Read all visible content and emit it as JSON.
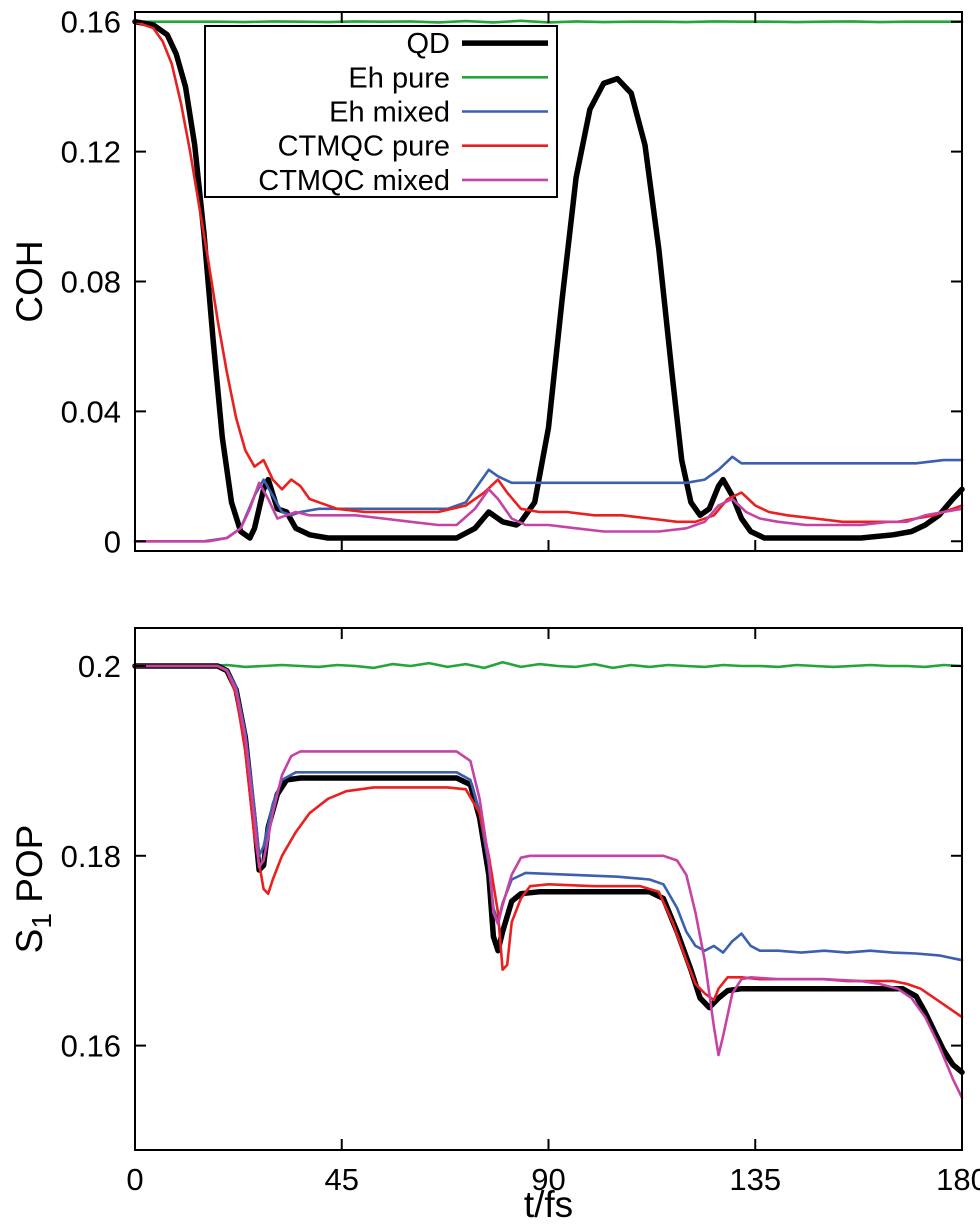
{
  "figure": {
    "xlabel": "t/fs"
  },
  "colors": {
    "QD": "#000000",
    "Eh pure": "#23a638",
    "Eh mixed": "#3c5fb0",
    "CTMQC pure": "#ea2020",
    "CTMQC mixed": "#c643a6"
  },
  "chart_data": [
    {
      "type": "line",
      "title": "",
      "ylabel": "COH",
      "ylabel_parts": [
        {
          "text": "COH",
          "sub": false
        }
      ],
      "xlim": [
        0,
        180
      ],
      "ylim": [
        -0.003,
        0.163
      ],
      "yticks": [
        0,
        0.04,
        0.08,
        0.12,
        0.16
      ],
      "ytick_labels": [
        "0",
        "0.04",
        "0.08",
        "0.12",
        "0.16"
      ],
      "xticks": [
        0,
        45,
        90,
        135,
        180
      ],
      "xtick_labels": null,
      "grid": false,
      "legend": {
        "visible": true,
        "position": "upper-left",
        "entries": [
          "QD",
          "Eh pure",
          "Eh mixed",
          "CTMQC pure",
          "CTMQC mixed"
        ]
      },
      "series": [
        {
          "name": "Eh pure",
          "color": "#23a638",
          "width": 2.6,
          "x": [
            0,
            6,
            12,
            18,
            24,
            30,
            36,
            42,
            48,
            54,
            60,
            66,
            72,
            78,
            84,
            90,
            96,
            102,
            108,
            114,
            120,
            126,
            132,
            138,
            144,
            150,
            156,
            162,
            168,
            174,
            180
          ],
          "y": [
            0.16,
            0.16,
            0.16,
            0.16,
            0.1599,
            0.1601,
            0.16,
            0.1599,
            0.1601,
            0.16,
            0.1601,
            0.1598,
            0.1602,
            0.1598,
            0.1603,
            0.1598,
            0.1601,
            0.1599,
            0.16,
            0.16,
            0.1599,
            0.1601,
            0.16,
            0.16,
            0.1599,
            0.16,
            0.1601,
            0.1599,
            0.16,
            0.16,
            0.16
          ]
        },
        {
          "name": "QD",
          "color": "#000000",
          "width": 5.5,
          "x": [
            0,
            4,
            7,
            9,
            11,
            13,
            15,
            17,
            19,
            21,
            23,
            25,
            26,
            28,
            29,
            31,
            33,
            35,
            38,
            42,
            48,
            56,
            64,
            70,
            74,
            77,
            80,
            83,
            84,
            87,
            90,
            93,
            96,
            99,
            102,
            105,
            108,
            111,
            114,
            117,
            119,
            121,
            123,
            125,
            127,
            128,
            130,
            132,
            134,
            137,
            142,
            150,
            158,
            165,
            169,
            172,
            175,
            178,
            180
          ],
          "y": [
            0.16,
            0.159,
            0.156,
            0.15,
            0.14,
            0.122,
            0.095,
            0.062,
            0.032,
            0.012,
            0.003,
            0.001,
            0.004,
            0.016,
            0.019,
            0.01,
            0.009,
            0.004,
            0.002,
            0.001,
            0.001,
            0.001,
            0.001,
            0.001,
            0.004,
            0.009,
            0.006,
            0.005,
            0.006,
            0.012,
            0.035,
            0.075,
            0.112,
            0.133,
            0.141,
            0.1425,
            0.138,
            0.122,
            0.09,
            0.05,
            0.025,
            0.012,
            0.008,
            0.01,
            0.017,
            0.019,
            0.014,
            0.007,
            0.003,
            0.001,
            0.001,
            0.001,
            0.001,
            0.002,
            0.003,
            0.005,
            0.008,
            0.013,
            0.016
          ]
        },
        {
          "name": "Eh mixed",
          "color": "#3c5fb0",
          "width": 2.6,
          "x": [
            0,
            15,
            20,
            23,
            26,
            28,
            30,
            32,
            34,
            36,
            40,
            50,
            60,
            68,
            72,
            75,
            77,
            79,
            82,
            86,
            95,
            105,
            115,
            120,
            124,
            127,
            130,
            132,
            136,
            142,
            150,
            160,
            170,
            176,
            180
          ],
          "y": [
            0.0,
            0.0,
            0.001,
            0.004,
            0.014,
            0.019,
            0.014,
            0.009,
            0.008,
            0.009,
            0.01,
            0.01,
            0.01,
            0.01,
            0.012,
            0.018,
            0.022,
            0.02,
            0.018,
            0.018,
            0.018,
            0.018,
            0.018,
            0.018,
            0.019,
            0.022,
            0.026,
            0.024,
            0.024,
            0.024,
            0.024,
            0.024,
            0.024,
            0.025,
            0.025
          ]
        },
        {
          "name": "CTMQC pure",
          "color": "#ea2020",
          "width": 2.6,
          "x": [
            0,
            4,
            6,
            8,
            10,
            12,
            14,
            16,
            18,
            20,
            22,
            24,
            26,
            28,
            30,
            32,
            34,
            36,
            38,
            40,
            44,
            50,
            58,
            66,
            72,
            76,
            79,
            81,
            84,
            88,
            94,
            100,
            106,
            112,
            118,
            122,
            126,
            129,
            132,
            135,
            138,
            142,
            148,
            154,
            160,
            166,
            170,
            174,
            178,
            180
          ],
          "y": [
            0.16,
            0.158,
            0.154,
            0.147,
            0.135,
            0.12,
            0.103,
            0.086,
            0.068,
            0.052,
            0.038,
            0.028,
            0.023,
            0.025,
            0.019,
            0.016,
            0.019,
            0.017,
            0.013,
            0.012,
            0.01,
            0.009,
            0.009,
            0.009,
            0.011,
            0.015,
            0.019,
            0.015,
            0.01,
            0.009,
            0.009,
            0.008,
            0.008,
            0.007,
            0.006,
            0.006,
            0.008,
            0.013,
            0.015,
            0.011,
            0.009,
            0.008,
            0.007,
            0.006,
            0.006,
            0.006,
            0.007,
            0.008,
            0.01,
            0.011
          ]
        },
        {
          "name": "CTMQC mixed",
          "color": "#c643a6",
          "width": 2.6,
          "x": [
            0,
            16,
            20,
            23,
            25,
            27,
            29,
            31,
            33,
            35,
            38,
            42,
            48,
            54,
            60,
            66,
            70,
            74,
            77,
            79,
            82,
            85,
            90,
            96,
            102,
            108,
            114,
            120,
            124,
            127,
            130,
            133,
            136,
            140,
            146,
            152,
            158,
            164,
            168,
            172,
            176,
            180
          ],
          "y": [
            0.0,
            0.0,
            0.001,
            0.004,
            0.01,
            0.018,
            0.013,
            0.007,
            0.008,
            0.009,
            0.008,
            0.008,
            0.008,
            0.007,
            0.006,
            0.005,
            0.005,
            0.01,
            0.016,
            0.013,
            0.007,
            0.005,
            0.005,
            0.004,
            0.003,
            0.003,
            0.003,
            0.004,
            0.006,
            0.011,
            0.013,
            0.009,
            0.007,
            0.006,
            0.005,
            0.005,
            0.005,
            0.006,
            0.006,
            0.008,
            0.009,
            0.01
          ]
        }
      ]
    },
    {
      "type": "line",
      "title": "",
      "ylabel": "S1 POP",
      "ylabel_parts": [
        {
          "text": "S",
          "sub": false
        },
        {
          "text": "1",
          "sub": true
        },
        {
          "text": " POP",
          "sub": false
        }
      ],
      "xlabel": "t/fs",
      "xlim": [
        0,
        180
      ],
      "ylim": [
        0.149,
        0.204
      ],
      "yticks": [
        0.16,
        0.18,
        0.2
      ],
      "ytick_labels": [
        "0.16",
        "0.18",
        "0.2"
      ],
      "xticks": [
        0,
        45,
        90,
        135,
        180
      ],
      "xtick_labels": [
        "0",
        "45",
        "90",
        "135",
        "180"
      ],
      "grid": false,
      "legend": {
        "visible": false
      },
      "series": [
        {
          "name": "Eh pure",
          "color": "#23a638",
          "width": 2.6,
          "x": [
            0,
            4,
            8,
            12,
            16,
            20,
            24,
            28,
            32,
            36,
            40,
            44,
            48,
            52,
            56,
            60,
            64,
            68,
            72,
            76,
            80,
            84,
            88,
            92,
            96,
            100,
            104,
            108,
            112,
            116,
            120,
            124,
            128,
            132,
            136,
            140,
            144,
            148,
            152,
            156,
            160,
            164,
            168,
            172,
            176,
            180
          ],
          "y": [
            0.2,
            0.2,
            0.2,
            0.2,
            0.2,
            0.2001,
            0.1999,
            0.2,
            0.2001,
            0.2,
            0.1999,
            0.2001,
            0.2,
            0.1998,
            0.2002,
            0.2,
            0.2003,
            0.1999,
            0.2002,
            0.1998,
            0.2004,
            0.1999,
            0.2002,
            0.2,
            0.1999,
            0.2002,
            0.1998,
            0.2001,
            0.1999,
            0.2001,
            0.2,
            0.1999,
            0.2001,
            0.2,
            0.2,
            0.1999,
            0.2001,
            0.2,
            0.1999,
            0.2,
            0.2001,
            0.2,
            0.2,
            0.1999,
            0.2001,
            0.2
          ]
        },
        {
          "name": "QD",
          "color": "#000000",
          "width": 5.5,
          "x": [
            0,
            12,
            18,
            20,
            22,
            24,
            26,
            27,
            28,
            29,
            31,
            33,
            36,
            45,
            55,
            65,
            70,
            73,
            75,
            77,
            78,
            79,
            80,
            82,
            84,
            88,
            95,
            105,
            112,
            115,
            118,
            121,
            123,
            125,
            127,
            129,
            132,
            138,
            145,
            152,
            160,
            167,
            170,
            172,
            174,
            176,
            178,
            180
          ],
          "y": [
            0.2,
            0.2,
            0.2,
            0.1995,
            0.1975,
            0.1925,
            0.1835,
            0.1785,
            0.179,
            0.183,
            0.1865,
            0.188,
            0.1882,
            0.1882,
            0.1882,
            0.1882,
            0.1882,
            0.1875,
            0.184,
            0.178,
            0.1715,
            0.17,
            0.172,
            0.1752,
            0.176,
            0.1762,
            0.1762,
            0.1762,
            0.1762,
            0.1755,
            0.172,
            0.168,
            0.165,
            0.164,
            0.165,
            0.1658,
            0.166,
            0.166,
            0.166,
            0.166,
            0.166,
            0.166,
            0.1652,
            0.1635,
            0.1615,
            0.1595,
            0.158,
            0.1572
          ]
        },
        {
          "name": "Eh mixed",
          "color": "#3c5fb0",
          "width": 2.6,
          "x": [
            0,
            18,
            20,
            22,
            24,
            26,
            27,
            28,
            30,
            32,
            35,
            45,
            55,
            65,
            70,
            73,
            75,
            77,
            78,
            79,
            80,
            82,
            85,
            95,
            105,
            112,
            115,
            118,
            120,
            122,
            124,
            126,
            128,
            130,
            132,
            134,
            136,
            140,
            145,
            150,
            155,
            160,
            165,
            170,
            175,
            180
          ],
          "y": [
            0.2,
            0.2,
            0.1996,
            0.1978,
            0.193,
            0.185,
            0.18,
            0.181,
            0.1855,
            0.188,
            0.1888,
            0.1888,
            0.1888,
            0.1888,
            0.1888,
            0.188,
            0.1845,
            0.179,
            0.1745,
            0.173,
            0.175,
            0.1775,
            0.1782,
            0.178,
            0.1778,
            0.1775,
            0.177,
            0.1745,
            0.172,
            0.1705,
            0.17,
            0.1705,
            0.1698,
            0.171,
            0.1718,
            0.1705,
            0.17,
            0.17,
            0.1698,
            0.17,
            0.1698,
            0.17,
            0.1698,
            0.1697,
            0.1695,
            0.169
          ]
        },
        {
          "name": "CTMQC pure",
          "color": "#ea2020",
          "width": 2.6,
          "x": [
            0,
            18,
            20,
            22,
            24,
            26,
            28,
            29,
            30,
            32,
            35,
            38,
            42,
            46,
            52,
            60,
            68,
            72,
            75,
            77,
            79,
            80,
            81,
            82,
            84,
            86,
            90,
            100,
            110,
            114,
            117,
            120,
            122,
            124,
            126,
            127,
            129,
            132,
            136,
            140,
            145,
            150,
            155,
            160,
            165,
            168,
            171,
            174,
            177,
            180
          ],
          "y": [
            0.2,
            0.2,
            0.1995,
            0.197,
            0.191,
            0.182,
            0.1765,
            0.176,
            0.1775,
            0.18,
            0.1825,
            0.1845,
            0.186,
            0.1868,
            0.1872,
            0.1872,
            0.1872,
            0.187,
            0.1845,
            0.18,
            0.174,
            0.168,
            0.1685,
            0.173,
            0.1755,
            0.1768,
            0.177,
            0.1768,
            0.1768,
            0.1762,
            0.173,
            0.169,
            0.1665,
            0.1655,
            0.1648,
            0.166,
            0.1672,
            0.1672,
            0.167,
            0.167,
            0.167,
            0.167,
            0.1668,
            0.1668,
            0.1668,
            0.1665,
            0.166,
            0.165,
            0.164,
            0.163
          ]
        },
        {
          "name": "CTMQC mixed",
          "color": "#c643a6",
          "width": 2.6,
          "x": [
            0,
            18,
            20,
            22,
            24,
            26,
            27,
            28,
            30,
            32,
            34,
            36,
            45,
            55,
            65,
            70,
            73,
            75,
            77,
            78,
            79,
            80,
            82,
            84,
            86,
            95,
            105,
            115,
            118,
            120,
            122,
            124,
            126,
            127,
            128,
            130,
            132,
            134,
            140,
            150,
            158,
            162,
            166,
            169,
            172,
            175,
            178,
            180
          ],
          "y": [
            0.2,
            0.2,
            0.1995,
            0.1975,
            0.1925,
            0.1838,
            0.1788,
            0.1795,
            0.1845,
            0.1885,
            0.1905,
            0.191,
            0.191,
            0.191,
            0.191,
            0.191,
            0.19,
            0.186,
            0.1795,
            0.174,
            0.1728,
            0.1748,
            0.178,
            0.1798,
            0.18,
            0.18,
            0.18,
            0.18,
            0.1795,
            0.178,
            0.174,
            0.169,
            0.162,
            0.159,
            0.161,
            0.1655,
            0.167,
            0.1672,
            0.167,
            0.167,
            0.1668,
            0.1665,
            0.166,
            0.165,
            0.163,
            0.16,
            0.1565,
            0.1545
          ]
        }
      ]
    }
  ]
}
